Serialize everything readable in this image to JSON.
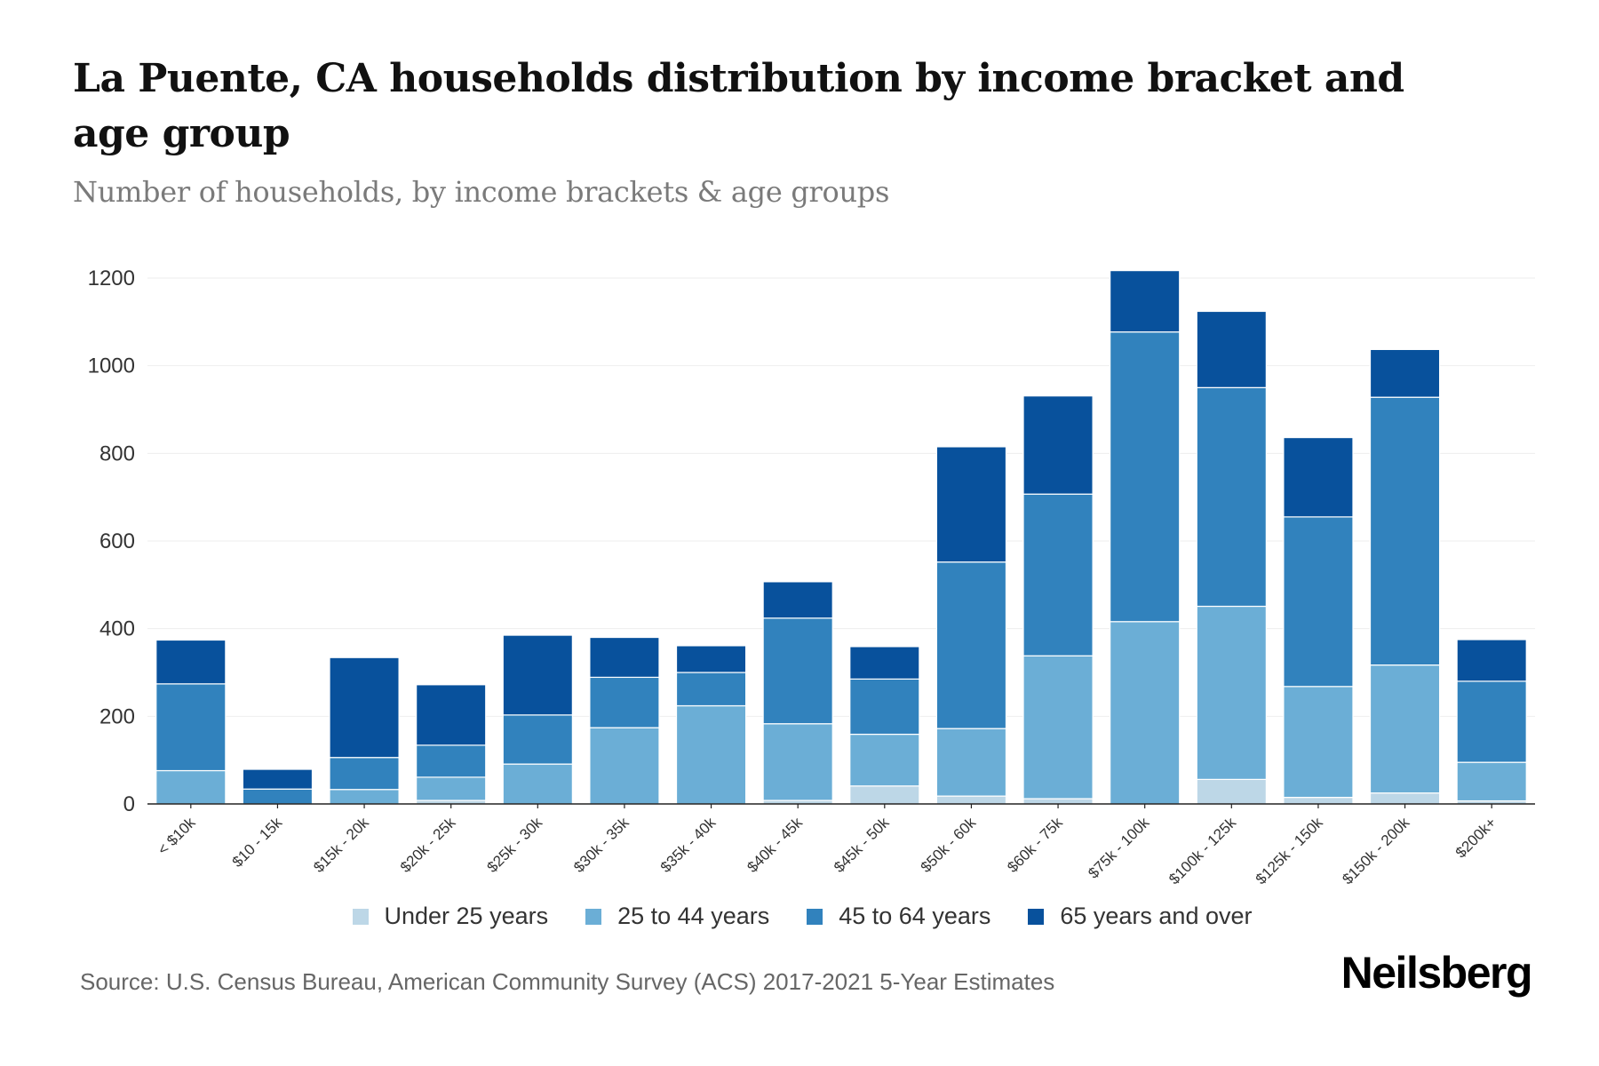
{
  "header": {
    "title": "La Puente, CA households distribution by income bracket and age group",
    "subtitle": "Number of households, by income brackets & age groups"
  },
  "footer": {
    "source": "Source: U.S. Census Bureau, American Community Survey (ACS) 2017-2021 5-Year Estimates",
    "logo": "Neilsberg"
  },
  "chart_data": {
    "type": "bar",
    "stacked": true,
    "title": "La Puente, CA households distribution by income bracket and age group",
    "subtitle": "Number of households, by income brackets & age groups",
    "xlabel": "",
    "ylabel": "",
    "ylim": [
      0,
      1200
    ],
    "yticks": [
      0,
      200,
      400,
      600,
      800,
      1000,
      1200
    ],
    "grid": true,
    "legend_position": "bottom",
    "categories": [
      "< $10k",
      "$10 - 15k",
      "$15k - 20k",
      "$20k - 25k",
      "$25k - 30k",
      "$30k - 35k",
      "$35k - 40k",
      "$40k - 45k",
      "$45k - 50k",
      "$50k - 60k",
      "$60k - 75k",
      "$75k - 100k",
      "$100k - 125k",
      "$125k - 150k",
      "$150k - 200k",
      "$200k+"
    ],
    "series": [
      {
        "name": "Under 25 years",
        "color": "#bdd7e7",
        "values": [
          0,
          0,
          0,
          8,
          0,
          0,
          0,
          8,
          41,
          18,
          12,
          0,
          56,
          15,
          25,
          7
        ]
      },
      {
        "name": "25 to 44 years",
        "color": "#6baed6",
        "values": [
          76,
          0,
          33,
          53,
          91,
          174,
          224,
          175,
          118,
          154,
          326,
          416,
          395,
          253,
          292,
          88
        ]
      },
      {
        "name": "45 to 64 years",
        "color": "#3182bd",
        "values": [
          198,
          34,
          73,
          73,
          112,
          115,
          76,
          241,
          126,
          380,
          369,
          661,
          499,
          387,
          611,
          185
        ]
      },
      {
        "name": "65 years and over",
        "color": "#08519c",
        "values": [
          100,
          45,
          228,
          138,
          182,
          91,
          61,
          83,
          74,
          263,
          224,
          140,
          174,
          181,
          109,
          95
        ]
      }
    ]
  }
}
